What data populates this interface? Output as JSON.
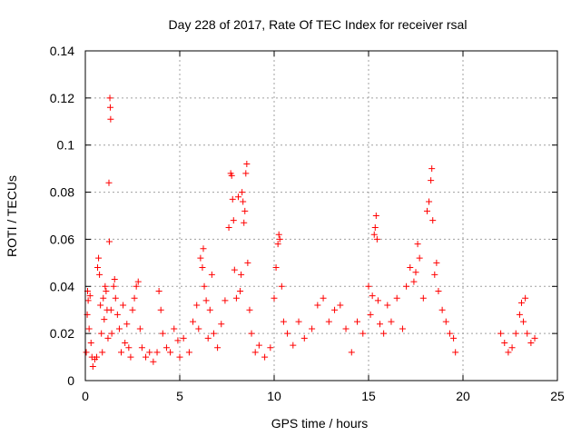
{
  "chart_data": {
    "type": "scatter",
    "title": "Day 228 of 2017, Rate Of TEC Index for receiver rsal",
    "xlabel": "GPS time / hours",
    "ylabel": "ROTI / TECUs",
    "xlim": [
      0,
      25
    ],
    "ylim": [
      0,
      0.14
    ],
    "xticks": [
      "0",
      "5",
      "10",
      "15",
      "20",
      "25"
    ],
    "yticks": [
      "0",
      "0.02",
      "0.04",
      "0.06",
      "0.08",
      "0.1",
      "0.12",
      "0.14"
    ],
    "grid": true,
    "marker": "+",
    "color": "#ff0000",
    "series": [
      {
        "points": [
          [
            0.05,
            0.012
          ],
          [
            0.1,
            0.028
          ],
          [
            0.12,
            0.038
          ],
          [
            0.15,
            0.034
          ],
          [
            0.2,
            0.022
          ],
          [
            0.25,
            0.036
          ],
          [
            0.3,
            0.016
          ],
          [
            0.35,
            0.01
          ],
          [
            0.4,
            0.006
          ],
          [
            0.5,
            0.009
          ],
          [
            0.6,
            0.01
          ],
          [
            0.65,
            0.048
          ],
          [
            0.7,
            0.052
          ],
          [
            0.75,
            0.045
          ],
          [
            0.8,
            0.032
          ],
          [
            0.85,
            0.02
          ],
          [
            0.9,
            0.012
          ],
          [
            0.95,
            0.035
          ],
          [
            1.0,
            0.026
          ],
          [
            1.05,
            0.04
          ],
          [
            1.1,
            0.038
          ],
          [
            1.15,
            0.03
          ],
          [
            1.2,
            0.018
          ],
          [
            1.25,
            0.084
          ],
          [
            1.27,
            0.059
          ],
          [
            1.3,
            0.12
          ],
          [
            1.32,
            0.116
          ],
          [
            1.34,
            0.111
          ],
          [
            1.36,
            0.03
          ],
          [
            1.4,
            0.02
          ],
          [
            1.5,
            0.04
          ],
          [
            1.55,
            0.043
          ],
          [
            1.6,
            0.035
          ],
          [
            1.7,
            0.028
          ],
          [
            1.8,
            0.022
          ],
          [
            1.9,
            0.012
          ],
          [
            2.0,
            0.032
          ],
          [
            2.1,
            0.016
          ],
          [
            2.2,
            0.024
          ],
          [
            2.3,
            0.014
          ],
          [
            2.4,
            0.01
          ],
          [
            2.5,
            0.03
          ],
          [
            2.6,
            0.035
          ],
          [
            2.7,
            0.04
          ],
          [
            2.8,
            0.042
          ],
          [
            2.9,
            0.022
          ],
          [
            3.0,
            0.014
          ],
          [
            3.2,
            0.01
          ],
          [
            3.4,
            0.012
          ],
          [
            3.6,
            0.008
          ],
          [
            3.8,
            0.012
          ],
          [
            3.9,
            0.038
          ],
          [
            4.0,
            0.03
          ],
          [
            4.1,
            0.02
          ],
          [
            4.3,
            0.014
          ],
          [
            4.5,
            0.012
          ],
          [
            4.7,
            0.022
          ],
          [
            4.9,
            0.017
          ],
          [
            5.0,
            0.01
          ],
          [
            5.2,
            0.018
          ],
          [
            5.5,
            0.012
          ],
          [
            5.7,
            0.025
          ],
          [
            5.9,
            0.032
          ],
          [
            6.0,
            0.022
          ],
          [
            6.1,
            0.052
          ],
          [
            6.2,
            0.048
          ],
          [
            6.25,
            0.056
          ],
          [
            6.3,
            0.04
          ],
          [
            6.4,
            0.034
          ],
          [
            6.5,
            0.018
          ],
          [
            6.6,
            0.03
          ],
          [
            6.7,
            0.045
          ],
          [
            6.8,
            0.02
          ],
          [
            7.0,
            0.014
          ],
          [
            7.2,
            0.024
          ],
          [
            7.4,
            0.034
          ],
          [
            7.6,
            0.065
          ],
          [
            7.7,
            0.088
          ],
          [
            7.75,
            0.087
          ],
          [
            7.8,
            0.077
          ],
          [
            7.85,
            0.068
          ],
          [
            7.9,
            0.047
          ],
          [
            8.0,
            0.035
          ],
          [
            8.1,
            0.078
          ],
          [
            8.2,
            0.038
          ],
          [
            8.25,
            0.045
          ],
          [
            8.3,
            0.08
          ],
          [
            8.35,
            0.076
          ],
          [
            8.4,
            0.067
          ],
          [
            8.45,
            0.072
          ],
          [
            8.5,
            0.088
          ],
          [
            8.55,
            0.092
          ],
          [
            8.6,
            0.05
          ],
          [
            8.7,
            0.03
          ],
          [
            8.8,
            0.02
          ],
          [
            9.0,
            0.012
          ],
          [
            9.2,
            0.015
          ],
          [
            9.5,
            0.01
          ],
          [
            9.8,
            0.014
          ],
          [
            10.0,
            0.035
          ],
          [
            10.1,
            0.048
          ],
          [
            10.2,
            0.058
          ],
          [
            10.25,
            0.062
          ],
          [
            10.3,
            0.06
          ],
          [
            10.4,
            0.04
          ],
          [
            10.5,
            0.025
          ],
          [
            10.7,
            0.02
          ],
          [
            11.0,
            0.015
          ],
          [
            11.3,
            0.025
          ],
          [
            11.6,
            0.018
          ],
          [
            12.0,
            0.022
          ],
          [
            12.3,
            0.032
          ],
          [
            12.6,
            0.035
          ],
          [
            12.9,
            0.025
          ],
          [
            13.2,
            0.03
          ],
          [
            13.5,
            0.032
          ],
          [
            13.8,
            0.022
          ],
          [
            14.1,
            0.012
          ],
          [
            14.4,
            0.025
          ],
          [
            14.7,
            0.02
          ],
          [
            15.0,
            0.04
          ],
          [
            15.1,
            0.028
          ],
          [
            15.2,
            0.036
          ],
          [
            15.3,
            0.062
          ],
          [
            15.35,
            0.065
          ],
          [
            15.4,
            0.07
          ],
          [
            15.45,
            0.06
          ],
          [
            15.5,
            0.034
          ],
          [
            15.6,
            0.024
          ],
          [
            15.8,
            0.02
          ],
          [
            16.0,
            0.032
          ],
          [
            16.2,
            0.025
          ],
          [
            16.5,
            0.035
          ],
          [
            16.8,
            0.022
          ],
          [
            17.0,
            0.04
          ],
          [
            17.2,
            0.048
          ],
          [
            17.4,
            0.042
          ],
          [
            17.5,
            0.046
          ],
          [
            17.6,
            0.058
          ],
          [
            17.7,
            0.052
          ],
          [
            17.9,
            0.035
          ],
          [
            18.1,
            0.072
          ],
          [
            18.2,
            0.076
          ],
          [
            18.3,
            0.085
          ],
          [
            18.35,
            0.09
          ],
          [
            18.4,
            0.068
          ],
          [
            18.5,
            0.045
          ],
          [
            18.6,
            0.05
          ],
          [
            18.7,
            0.038
          ],
          [
            18.9,
            0.03
          ],
          [
            19.1,
            0.025
          ],
          [
            19.3,
            0.02
          ],
          [
            19.5,
            0.018
          ],
          [
            19.6,
            0.012
          ],
          [
            22.0,
            0.02
          ],
          [
            22.2,
            0.016
          ],
          [
            22.4,
            0.012
          ],
          [
            22.6,
            0.014
          ],
          [
            22.8,
            0.02
          ],
          [
            23.0,
            0.028
          ],
          [
            23.1,
            0.033
          ],
          [
            23.2,
            0.025
          ],
          [
            23.3,
            0.035
          ],
          [
            23.4,
            0.02
          ],
          [
            23.6,
            0.016
          ],
          [
            23.8,
            0.018
          ]
        ]
      }
    ]
  }
}
